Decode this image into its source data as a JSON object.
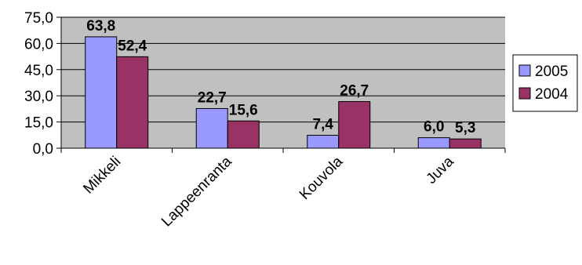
{
  "chart_data": {
    "type": "bar",
    "categories": [
      "Mikkeli",
      "Lappeenranta",
      "Kouvola",
      "Juva"
    ],
    "series": [
      {
        "name": "2005",
        "values": [
          63.8,
          22.7,
          7.4,
          6.0
        ],
        "labels": [
          "63,8",
          "22,7",
          "7,4",
          "6,0"
        ],
        "color": "#9999FF"
      },
      {
        "name": "2004",
        "values": [
          52.4,
          15.6,
          26.7,
          5.3
        ],
        "labels": [
          "52,4",
          "15,6",
          "26,7",
          "5,3"
        ],
        "color": "#993366"
      }
    ],
    "ylim": [
      0,
      75
    ],
    "yticks": [
      0,
      15,
      30,
      45,
      60,
      75
    ],
    "ytick_labels": [
      "0,0",
      "15,0",
      "30,0",
      "45,0",
      "60,0",
      "75,0"
    ],
    "grid": true,
    "plot_background": "#C0C0C0",
    "legend_position": "right"
  }
}
